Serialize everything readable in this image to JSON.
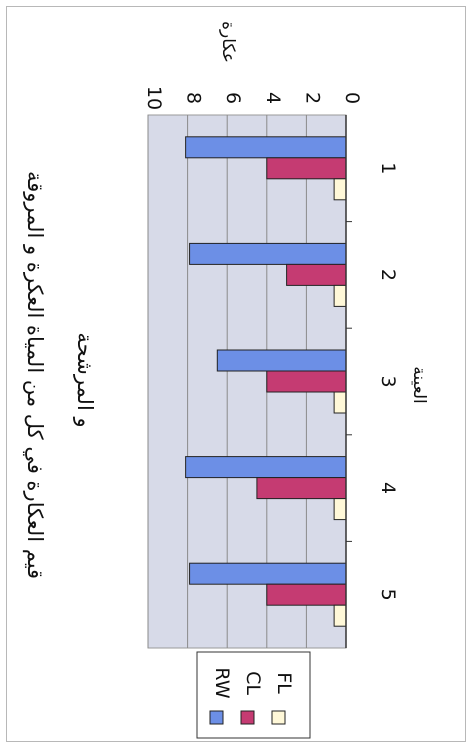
{
  "chart_data": {
    "type": "bar",
    "orientation": "horizontal",
    "title": "قيم العكارة في كل من المياة العكرة و المروقة و المرشحة",
    "xlabel": "العينة",
    "ylabel": "عكارة",
    "categories": [
      "1",
      "2",
      "3",
      "4",
      "5"
    ],
    "ylim": [
      0,
      10
    ],
    "yticks": [
      "0",
      "2",
      "4",
      "6",
      "8",
      "10"
    ],
    "grid": true,
    "legend_position": "bottom-left",
    "series": [
      {
        "name": "RW",
        "values": [
          8.1,
          7.9,
          6.5,
          8.1,
          7.9
        ],
        "color": "#6c8fe6"
      },
      {
        "name": "CL",
        "values": [
          4.0,
          3.0,
          4.0,
          4.5,
          4.0
        ],
        "color": "#c53b72"
      },
      {
        "name": "FL",
        "values": [
          0.6,
          0.6,
          0.6,
          0.6,
          0.6
        ],
        "color": "#fff8d8"
      }
    ],
    "colors": {
      "plot_bg": "#d7dae8",
      "grid": "#8a8a8a",
      "axis": "#333333"
    }
  }
}
